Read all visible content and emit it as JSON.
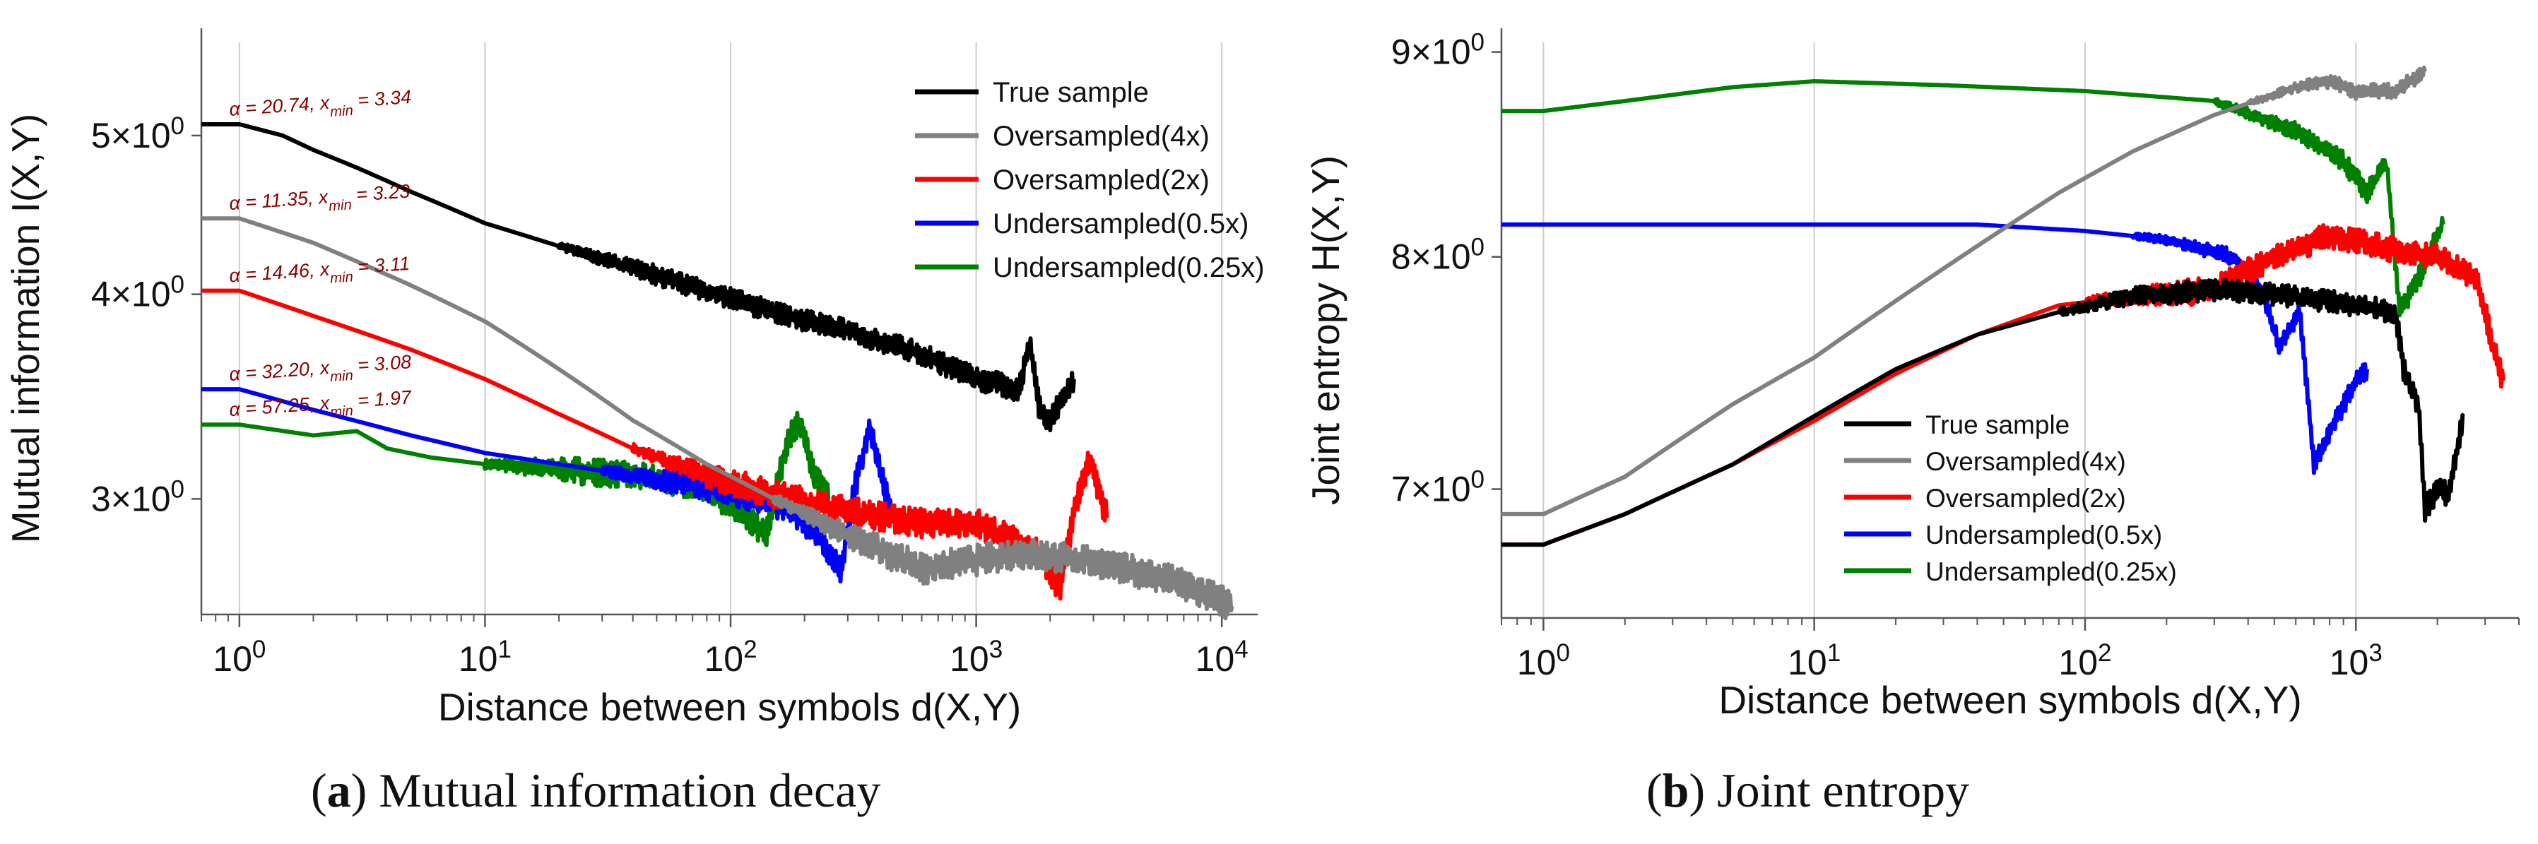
{
  "figure_title": "",
  "captions": [
    {
      "letter": "a",
      "text": "Mutual information decay"
    },
    {
      "letter": "b",
      "text": "Joint entropy"
    }
  ],
  "chart_data": [
    {
      "type": "line",
      "panel": "a",
      "title": "",
      "xlabel": "Distance between symbols d(X,Y)",
      "ylabel": "Mutual information I(X,Y)",
      "xscale": "log",
      "yscale": "log",
      "xlim": [
        0.7,
        14000
      ],
      "ylim": [
        2.55,
        5.7
      ],
      "x_ticks": [
        {
          "value": 1,
          "base": "10",
          "exp": "0"
        },
        {
          "value": 10,
          "base": "10",
          "exp": "1"
        },
        {
          "value": 100,
          "base": "10",
          "exp": "2"
        },
        {
          "value": 1000,
          "base": "10",
          "exp": "3"
        },
        {
          "value": 10000,
          "base": "10",
          "exp": "4"
        }
      ],
      "y_ticks": [
        {
          "value": 3,
          "mant": "3",
          "base": "10",
          "exp": "0"
        },
        {
          "value": 4,
          "mant": "4",
          "base": "10",
          "exp": "0"
        },
        {
          "value": 5,
          "mant": "5",
          "base": "10",
          "exp": "0"
        }
      ],
      "grid": "vertical",
      "legend_position": "top-right",
      "series": [
        {
          "name": "True sample",
          "color": "#000000",
          "points": [
            [
              0.7,
              5.08
            ],
            [
              1,
              5.08
            ],
            [
              1.5,
              5.0
            ],
            [
              2,
              4.9
            ],
            [
              3,
              4.78
            ],
            [
              5,
              4.62
            ],
            [
              10,
              4.42
            ],
            [
              20,
              4.28
            ],
            [
              40,
              4.15
            ],
            [
              80,
              4.02
            ],
            [
              150,
              3.9
            ],
            [
              300,
              3.8
            ],
            [
              600,
              3.68
            ],
            [
              1000,
              3.55
            ],
            [
              1500,
              3.5
            ],
            [
              1650,
              3.75
            ],
            [
              1800,
              3.42
            ],
            [
              2000,
              3.35
            ],
            [
              2500,
              3.55
            ]
          ],
          "noise_from": 20,
          "noise": 0.06
        },
        {
          "name": "Oversampled(4x)",
          "color": "#808080",
          "points": [
            [
              0.7,
              4.45
            ],
            [
              1,
              4.45
            ],
            [
              2,
              4.3
            ],
            [
              5,
              4.05
            ],
            [
              10,
              3.85
            ],
            [
              20,
              3.6
            ],
            [
              40,
              3.35
            ],
            [
              80,
              3.15
            ],
            [
              150,
              3.0
            ],
            [
              300,
              2.85
            ],
            [
              600,
              2.72
            ],
            [
              1500,
              2.78
            ],
            [
              3000,
              2.75
            ],
            [
              6000,
              2.68
            ],
            [
              10000,
              2.6
            ],
            [
              11000,
              2.58
            ]
          ],
          "noise_from": 150,
          "noise": 0.06
        },
        {
          "name": "Oversampled(2x)",
          "color": "#ff0000",
          "points": [
            [
              0.7,
              4.02
            ],
            [
              1,
              4.02
            ],
            [
              2,
              3.88
            ],
            [
              5,
              3.7
            ],
            [
              10,
              3.55
            ],
            [
              20,
              3.38
            ],
            [
              40,
              3.22
            ],
            [
              80,
              3.1
            ],
            [
              150,
              3.02
            ],
            [
              300,
              2.95
            ],
            [
              600,
              2.9
            ],
            [
              1000,
              2.9
            ],
            [
              1800,
              2.78
            ],
            [
              2200,
              2.65
            ],
            [
              2500,
              2.95
            ],
            [
              2900,
              3.18
            ],
            [
              3400,
              2.92
            ]
          ],
          "noise_from": 40,
          "noise": 0.06
        },
        {
          "name": "Undersampled(0.5x)",
          "color": "#0000ff",
          "points": [
            [
              0.7,
              3.5
            ],
            [
              1,
              3.5
            ],
            [
              2,
              3.4
            ],
            [
              5,
              3.28
            ],
            [
              10,
              3.2
            ],
            [
              20,
              3.15
            ],
            [
              40,
              3.1
            ],
            [
              80,
              3.05
            ],
            [
              130,
              3.0
            ],
            [
              180,
              2.95
            ],
            [
              230,
              2.85
            ],
            [
              280,
              2.7
            ],
            [
              320,
              3.05
            ],
            [
              370,
              3.32
            ],
            [
              420,
              3.05
            ],
            [
              450,
              2.95
            ]
          ],
          "noise_from": 30,
          "noise": 0.06
        },
        {
          "name": "Undersampled(0.25x)",
          "color": "#008000",
          "points": [
            [
              0.7,
              3.33
            ],
            [
              1,
              3.33
            ],
            [
              2,
              3.28
            ],
            [
              3,
              3.3
            ],
            [
              4,
              3.22
            ],
            [
              6,
              3.18
            ],
            [
              10,
              3.15
            ],
            [
              20,
              3.13
            ],
            [
              40,
              3.1
            ],
            [
              80,
              3.05
            ],
            [
              140,
              2.85
            ],
            [
              170,
              3.25
            ],
            [
              190,
              3.35
            ],
            [
              220,
              3.1
            ],
            [
              250,
              3.0
            ]
          ],
          "noise_from": 10,
          "noise": 0.06
        }
      ],
      "annotations": [
        {
          "alpha": "20.74",
          "xmin": "3.34",
          "y": 5.08
        },
        {
          "alpha": "11.35",
          "xmin": "3.23",
          "y": 4.45
        },
        {
          "alpha": "14.46",
          "xmin": "3.11",
          "y": 4.02
        },
        {
          "alpha": "32.20",
          "xmin": "3.08",
          "y": 3.5
        },
        {
          "alpha": "57.25",
          "xmin": "1.97",
          "y": 3.33
        }
      ]
    },
    {
      "type": "line",
      "panel": "b",
      "title": "",
      "xlabel": "Distance between symbols d(X,Y)",
      "ylabel": "Joint entropy H(X,Y)",
      "xscale": "log",
      "yscale": "log",
      "xlim": [
        0.7,
        4000
      ],
      "ylim": [
        6.5,
        9.05
      ],
      "x_ticks": [
        {
          "value": 1,
          "base": "10",
          "exp": "0"
        },
        {
          "value": 10,
          "base": "10",
          "exp": "1"
        },
        {
          "value": 100,
          "base": "10",
          "exp": "2"
        },
        {
          "value": 1000,
          "base": "10",
          "exp": "3"
        }
      ],
      "y_ticks": [
        {
          "value": 7,
          "mant": "7",
          "base": "10",
          "exp": "0"
        },
        {
          "value": 8,
          "mant": "8",
          "base": "10",
          "exp": "0"
        },
        {
          "value": 9,
          "mant": "9",
          "base": "10",
          "exp": "0"
        }
      ],
      "grid": "vertical",
      "legend_position": "lower-center",
      "series": [
        {
          "name": "True sample",
          "color": "#000000",
          "points": [
            [
              0.7,
              6.78
            ],
            [
              1,
              6.78
            ],
            [
              2,
              6.9
            ],
            [
              5,
              7.1
            ],
            [
              10,
              7.3
            ],
            [
              20,
              7.5
            ],
            [
              40,
              7.65
            ],
            [
              80,
              7.75
            ],
            [
              150,
              7.82
            ],
            [
              300,
              7.85
            ],
            [
              600,
              7.82
            ],
            [
              1000,
              7.78
            ],
            [
              1400,
              7.75
            ],
            [
              1500,
              7.5
            ],
            [
              1700,
              7.35
            ],
            [
              1800,
              6.92
            ],
            [
              2000,
              7.0
            ],
            [
              2200,
              6.98
            ],
            [
              2500,
              7.3
            ]
          ],
          "noise_from": 80,
          "noise": 0.05
        },
        {
          "name": "Oversampled(4x)",
          "color": "#808080",
          "points": [
            [
              0.7,
              6.9
            ],
            [
              1,
              6.9
            ],
            [
              2,
              7.05
            ],
            [
              5,
              7.35
            ],
            [
              10,
              7.55
            ],
            [
              20,
              7.8
            ],
            [
              40,
              8.05
            ],
            [
              80,
              8.3
            ],
            [
              150,
              8.5
            ],
            [
              300,
              8.68
            ],
            [
              600,
              8.82
            ],
            [
              800,
              8.85
            ],
            [
              1000,
              8.8
            ],
            [
              1400,
              8.8
            ],
            [
              1800,
              8.9
            ]
          ],
          "noise_from": 400,
          "noise": 0.04
        },
        {
          "name": "Oversampled(2x)",
          "color": "#ff0000",
          "points": [
            [
              0.7,
              6.78
            ],
            [
              1,
              6.78
            ],
            [
              2,
              6.9
            ],
            [
              5,
              7.1
            ],
            [
              10,
              7.28
            ],
            [
              20,
              7.48
            ],
            [
              40,
              7.65
            ],
            [
              80,
              7.78
            ],
            [
              150,
              7.82
            ],
            [
              300,
              7.85
            ],
            [
              500,
              8.0
            ],
            [
              800,
              8.1
            ],
            [
              1200,
              8.05
            ],
            [
              2000,
              8.0
            ],
            [
              2800,
              7.9
            ],
            [
              3200,
              7.6
            ],
            [
              3500,
              7.45
            ]
          ],
          "noise_from": 100,
          "noise": 0.06
        },
        {
          "name": "Undersampled(0.5x)",
          "color": "#0000ff",
          "points": [
            [
              0.7,
              8.15
            ],
            [
              1,
              8.15
            ],
            [
              10,
              8.15
            ],
            [
              40,
              8.15
            ],
            [
              100,
              8.12
            ],
            [
              200,
              8.08
            ],
            [
              350,
              8.0
            ],
            [
              450,
              7.85
            ],
            [
              520,
              7.6
            ],
            [
              620,
              7.75
            ],
            [
              700,
              7.1
            ],
            [
              1000,
              7.45
            ],
            [
              1100,
              7.5
            ]
          ],
          "noise_from": 150,
          "noise": 0.04
        },
        {
          "name": "Undersampled(0.25x)",
          "color": "#008000",
          "points": [
            [
              0.7,
              8.7
            ],
            [
              1,
              8.7
            ],
            [
              2,
              8.75
            ],
            [
              5,
              8.82
            ],
            [
              10,
              8.85
            ],
            [
              30,
              8.83
            ],
            [
              100,
              8.8
            ],
            [
              300,
              8.75
            ],
            [
              600,
              8.6
            ],
            [
              900,
              8.45
            ],
            [
              1100,
              8.3
            ],
            [
              1300,
              8.45
            ],
            [
              1450,
              7.75
            ],
            [
              1700,
              7.9
            ],
            [
              2100,
              8.15
            ]
          ],
          "noise_from": 300,
          "noise": 0.05
        }
      ],
      "annotations": []
    }
  ]
}
